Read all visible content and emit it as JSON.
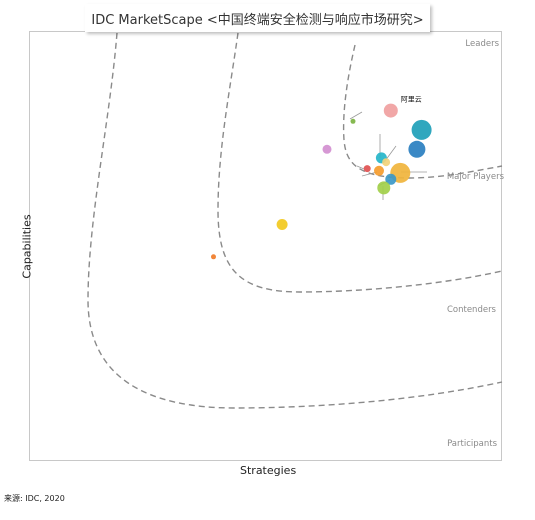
{
  "header": {
    "title": "IDC MarketScape <中国终端安全检测与响应市场研究>"
  },
  "source": "来源: IDC, 2020",
  "chart_data": {
    "type": "scatter",
    "title": "IDC MarketScape <中国终端安全检测与响应市场研究>",
    "xlabel": "Strategies",
    "ylabel": "Capabilities",
    "xlim": [
      0,
      100
    ],
    "ylim": [
      0,
      100
    ],
    "grid": false,
    "zones": [
      "Leaders",
      "Major Players",
      "Contenders",
      "Participants"
    ],
    "points": [
      {
        "label": "阿里云",
        "x": 76.5,
        "y": 81.5,
        "size": 7,
        "color": "#f0a0a0"
      },
      {
        "label": "",
        "x": 83.0,
        "y": 77.0,
        "size": 10,
        "color": "#1ea0b8"
      },
      {
        "label": "",
        "x": 82.0,
        "y": 72.5,
        "size": 8.5,
        "color": "#2a7fc0"
      },
      {
        "label": "",
        "x": 68.5,
        "y": 79.0,
        "size": 2.5,
        "color": "#7cb342"
      },
      {
        "label": "",
        "x": 63.0,
        "y": 72.5,
        "size": 4.5,
        "color": "#d38fd0"
      },
      {
        "label": "",
        "x": 74.5,
        "y": 70.5,
        "size": 5.5,
        "color": "#26b5c9"
      },
      {
        "label": "",
        "x": 75.5,
        "y": 69.5,
        "size": 4,
        "color": "#f2d27a"
      },
      {
        "label": "",
        "x": 71.5,
        "y": 68.0,
        "size": 3.5,
        "color": "#e05050"
      },
      {
        "label": "",
        "x": 74.0,
        "y": 67.5,
        "size": 5,
        "color": "#f59c2e"
      },
      {
        "label": "",
        "x": 78.5,
        "y": 67.0,
        "size": 10,
        "color": "#f0b43c"
      },
      {
        "label": "",
        "x": 76.5,
        "y": 65.5,
        "size": 5.5,
        "color": "#3b98c7"
      },
      {
        "label": "",
        "x": 75.0,
        "y": 63.5,
        "size": 6.5,
        "color": "#a2cf4a"
      },
      {
        "label": "",
        "x": 53.5,
        "y": 55.0,
        "size": 5.5,
        "color": "#f2c91e"
      },
      {
        "label": "",
        "x": 39.0,
        "y": 47.5,
        "size": 2.5,
        "color": "#f07c28"
      }
    ],
    "boundary_color": "#8a8a8a",
    "axis_color": "#c8c8c8"
  }
}
